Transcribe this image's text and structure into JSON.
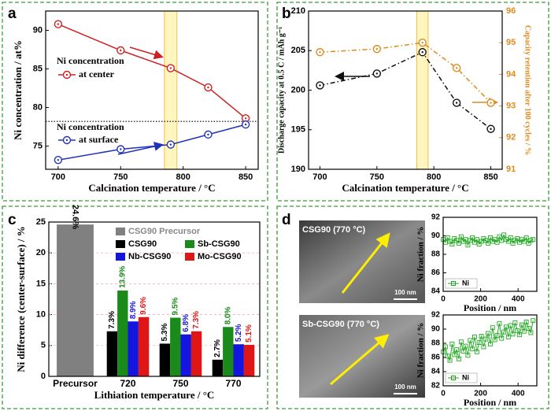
{
  "chart_data": [
    {
      "type": "line",
      "label": "a",
      "xlabel": "Calcination temperature / °C",
      "ylabel": "Ni concentration / at%",
      "x": [
        700,
        750,
        790,
        820,
        850
      ],
      "xlim": [
        690,
        860
      ],
      "xticks": [
        700,
        750,
        800,
        850
      ],
      "ylim": [
        72,
        92.5
      ],
      "yticks": [
        75,
        80,
        85,
        90
      ],
      "marker": "circle",
      "hline": 78.2,
      "highlight_x": [
        785,
        795
      ],
      "annotations": [
        "Ni concentration",
        "at center",
        "Ni concentration",
        "at surface"
      ],
      "series": [
        {
          "color": "#cc2222",
          "linestyle": "solid",
          "values": [
            90.8,
            87.4,
            85.1,
            82.6,
            78.6
          ]
        },
        {
          "color": "#2233bb",
          "linestyle": "solid",
          "values": [
            73.2,
            74.6,
            75.2,
            76.5,
            77.8
          ]
        }
      ]
    },
    {
      "type": "line",
      "label": "b",
      "xlabel": "Calcination temperature / °C",
      "ylabel": "Discharge capacity at 0.5 C / mAh g⁻¹",
      "y2label": "Capacity retention after 100 cycles / %",
      "x": [
        700,
        750,
        790,
        820,
        850
      ],
      "xlim": [
        690,
        860
      ],
      "xticks": [
        700,
        750,
        800,
        850
      ],
      "ylim": [
        190,
        210
      ],
      "yticks": [
        190,
        195,
        200,
        205,
        210
      ],
      "y2lim": [
        91,
        96
      ],
      "y2ticks": [
        91,
        92,
        93,
        94,
        95,
        96
      ],
      "marker": "circle",
      "highlight_x": [
        785,
        795
      ],
      "series": [
        {
          "color": "#111111",
          "linestyle": "dashdot",
          "values": [
            200.6,
            202.1,
            204.8,
            198.4,
            195.1
          ]
        },
        {
          "color": "#e08a1e",
          "linestyle": "dashdot",
          "axis": "y2",
          "values": [
            94.7,
            94.8,
            95.0,
            94.2,
            93.1
          ]
        }
      ]
    },
    {
      "type": "bar",
      "label": "c",
      "xlabel": "Lithiation temperature / °C",
      "ylabel": "Ni difference (center-surface) / %",
      "categories": [
        "Precursor",
        "720",
        "750",
        "770"
      ],
      "ylim": [
        0,
        25
      ],
      "yticks": [
        0,
        5,
        10,
        15,
        20,
        25
      ],
      "grid": true,
      "series": [
        {
          "name": "CSG90 Precursor",
          "color": "#808080",
          "values": [
            24.6,
            null,
            null,
            null
          ],
          "value_labels": [
            "24.6%",
            null,
            null,
            null
          ]
        },
        {
          "name": "CSG90",
          "color": "#000000",
          "values": [
            null,
            7.3,
            5.3,
            2.7
          ],
          "value_labels": [
            null,
            "7.3%",
            "5.3%",
            "2.7%"
          ]
        },
        {
          "name": "Sb-CSG90",
          "color": "#1a8a1a",
          "values": [
            null,
            13.9,
            9.5,
            8.0
          ],
          "value_labels": [
            null,
            "13.9%",
            "9.5%",
            "8.0%"
          ]
        },
        {
          "name": "Nb-CSG90",
          "color": "#1515e0",
          "values": [
            null,
            8.9,
            6.8,
            5.2
          ],
          "value_labels": [
            null,
            "8.9%",
            "6.8%",
            "5.2%"
          ]
        },
        {
          "name": "Mo-CSG90",
          "color": "#e01515",
          "values": [
            null,
            9.6,
            7.3,
            5.1
          ],
          "value_labels": [
            null,
            "9.6%",
            "7.3%",
            "5.1%"
          ]
        }
      ]
    },
    {
      "type": "line",
      "label": "d",
      "xlabel": "Position / nm",
      "ylabel": "Ni fraction / %",
      "image_label": "CSG90 (770 °C)",
      "scale_bar": "100 nm",
      "x": [
        0,
        12,
        24,
        36,
        48,
        60,
        72,
        84,
        96,
        108,
        120,
        132,
        144,
        156,
        168,
        180,
        192,
        204,
        216,
        228,
        240,
        252,
        264,
        276,
        288,
        300,
        312,
        324,
        336,
        348,
        360,
        372,
        384,
        396,
        408,
        420,
        432,
        444,
        456,
        468,
        480
      ],
      "xlim": [
        0,
        500
      ],
      "xticks": [
        0,
        200,
        400
      ],
      "ylim": [
        84,
        92
      ],
      "yticks": [
        84,
        86,
        88,
        90,
        92
      ],
      "marker": "square",
      "series": [
        {
          "name": "Ni",
          "color": "#22aa22",
          "linestyle": "solid",
          "values": [
            89.6,
            89.3,
            89.8,
            89.4,
            89.1,
            89.7,
            89.5,
            89.2,
            89.9,
            89.4,
            89.6,
            89.0,
            89.5,
            89.8,
            89.3,
            89.6,
            89.1,
            89.4,
            89.7,
            89.5,
            89.2,
            89.8,
            89.4,
            89.6,
            89.3,
            89.9,
            89.5,
            90.1,
            89.6,
            89.4,
            89.8,
            89.2,
            89.5,
            89.7,
            89.3,
            89.6,
            89.4,
            89.8,
            89.2,
            89.5,
            89.6
          ]
        }
      ]
    },
    {
      "type": "line",
      "xlabel": "Position / nm",
      "ylabel": "Ni fraction / %",
      "image_label": "Sb-CSG90 (770 °C)",
      "scale_bar": "100 nm",
      "x": [
        0,
        12,
        24,
        36,
        48,
        60,
        72,
        84,
        96,
        108,
        120,
        132,
        144,
        156,
        168,
        180,
        192,
        204,
        216,
        228,
        240,
        252,
        264,
        276,
        288,
        300,
        312,
        324,
        336,
        348,
        360,
        372,
        384,
        396,
        408,
        420,
        432,
        444,
        456,
        468,
        480
      ],
      "xlim": [
        0,
        500
      ],
      "xticks": [
        0,
        200,
        400
      ],
      "ylim": [
        82,
        92
      ],
      "yticks": [
        82,
        84,
        86,
        88,
        90,
        92
      ],
      "marker": "square",
      "series": [
        {
          "name": "Ni",
          "color": "#22aa22",
          "linestyle": "solid",
          "values": [
            86.8,
            87.5,
            86.2,
            85.6,
            87.9,
            86.4,
            87.1,
            85.8,
            88.2,
            86.9,
            87.6,
            86.3,
            88.4,
            87.2,
            88.9,
            86.8,
            88.1,
            89.0,
            87.5,
            88.6,
            89.4,
            87.9,
            90.2,
            88.5,
            89.1,
            90.8,
            88.7,
            89.6,
            90.3,
            88.9,
            90.5,
            89.3,
            90.9,
            89.8,
            89.2,
            90.6,
            89.7,
            91.0,
            90.1,
            89.5,
            91.2
          ]
        }
      ]
    }
  ]
}
